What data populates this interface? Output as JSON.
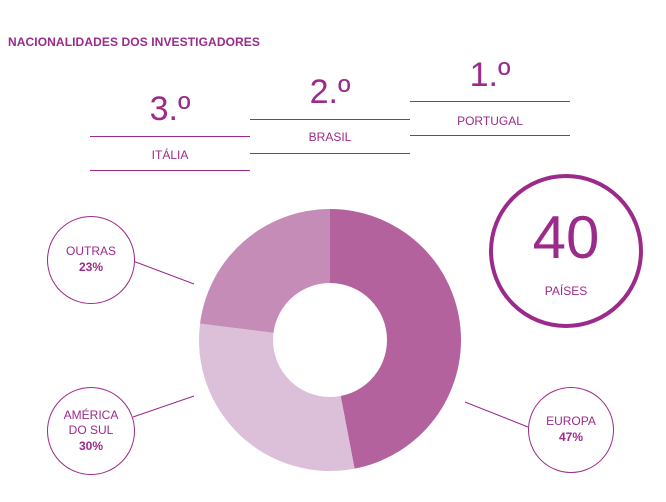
{
  "title": "NACIONALIDADES DOS INVESTIGADORES",
  "ranking": [
    {
      "position": "1.º",
      "country": "PORTUGAL"
    },
    {
      "position": "2.º",
      "country": "BRASIL"
    },
    {
      "position": "3.º",
      "country": "ITÁLIA"
    }
  ],
  "countries": {
    "count": "40",
    "label": "PAÍSES"
  },
  "colors": {
    "accent": "#9b2a8a",
    "europa": "#b3629d",
    "america_do_sul": "#dcbfd8",
    "outras": "#c58cb8"
  },
  "chart_data": {
    "type": "pie",
    "subtype": "donut",
    "title": "NACIONALIDADES DOS INVESTIGADORES",
    "categories": [
      "EUROPA",
      "AMÉRICA DO SUL",
      "OUTRAS"
    ],
    "values": [
      47,
      30,
      23
    ],
    "unit": "%",
    "labels": [
      "EUROPA 47%",
      "AMÉRICA DO SUL 30%",
      "OUTRAS 23%"
    ],
    "start_angle": "12 o'clock, clockwise",
    "legend_position": "callout bubbles"
  },
  "callouts": {
    "europa": {
      "name": "EUROPA",
      "pct": "47%"
    },
    "america_line1": "AMÉRICA",
    "america_line2": "DO SUL",
    "america_pct": "30%",
    "outras": {
      "name": "OUTRAS",
      "pct": "23%"
    }
  }
}
